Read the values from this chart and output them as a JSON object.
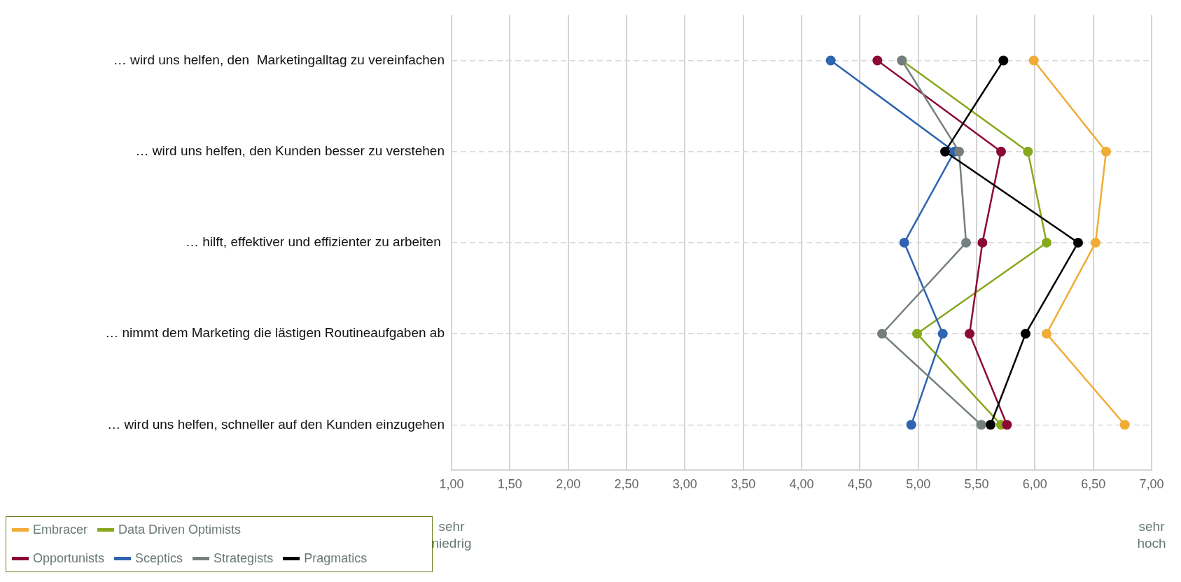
{
  "chart_data": {
    "type": "line",
    "orientation": "horizontal",
    "categories": [
      "… wird uns helfen, den  Marketingalltag zu vereinfachen",
      "… wird uns helfen, den Kunden besser zu verstehen",
      "… hilft, effektiver und effizienter zu arbeiten ",
      "… nimmt dem Marketing die lästigen Routineaufgaben ab",
      "… wird uns helfen, schneller auf den Kunden einzugehen"
    ],
    "series": [
      {
        "name": "Embracer",
        "color": "#f0ac35",
        "values": [
          5.99,
          6.61,
          6.52,
          6.1,
          6.77
        ]
      },
      {
        "name": "Data Driven Optimists",
        "color": "#87a81b",
        "values": [
          4.86,
          5.94,
          6.1,
          4.99,
          5.71
        ]
      },
      {
        "name": "Opportunists",
        "color": "#8b0a35",
        "values": [
          4.65,
          5.71,
          5.55,
          5.44,
          5.76
        ]
      },
      {
        "name": "Sceptics",
        "color": "#2e64b0",
        "values": [
          4.25,
          5.31,
          4.88,
          5.21,
          4.94
        ]
      },
      {
        "name": "Strategists",
        "color": "#757f7f",
        "values": [
          4.86,
          5.35,
          5.41,
          4.69,
          5.54
        ]
      },
      {
        "name": "Pragmatics",
        "color": "#000000",
        "values": [
          5.73,
          5.23,
          6.37,
          5.92,
          5.62
        ]
      }
    ],
    "xlim": [
      1,
      7
    ],
    "xticks": [
      {
        "value": 1,
        "label": "1,00"
      },
      {
        "value": 1.5,
        "label": "1,50"
      },
      {
        "value": 2,
        "label": "2,00"
      },
      {
        "value": 2.5,
        "label": "2,50"
      },
      {
        "value": 3,
        "label": "3,00"
      },
      {
        "value": 3.5,
        "label": "3,50"
      },
      {
        "value": 4,
        "label": "4,00"
      },
      {
        "value": 4.5,
        "label": "4,50"
      },
      {
        "value": 5,
        "label": "5,00"
      },
      {
        "value": 5.5,
        "label": "5,50"
      },
      {
        "value": 6,
        "label": "6,00"
      },
      {
        "value": 6.5,
        "label": "6,50"
      },
      {
        "value": 7,
        "label": "7,00"
      }
    ],
    "annotations": [
      "sehr niedrig",
      "sehr hoch"
    ],
    "grid": true,
    "legend": "bottom left",
    "marker": "circle",
    "line_style": "solid"
  }
}
